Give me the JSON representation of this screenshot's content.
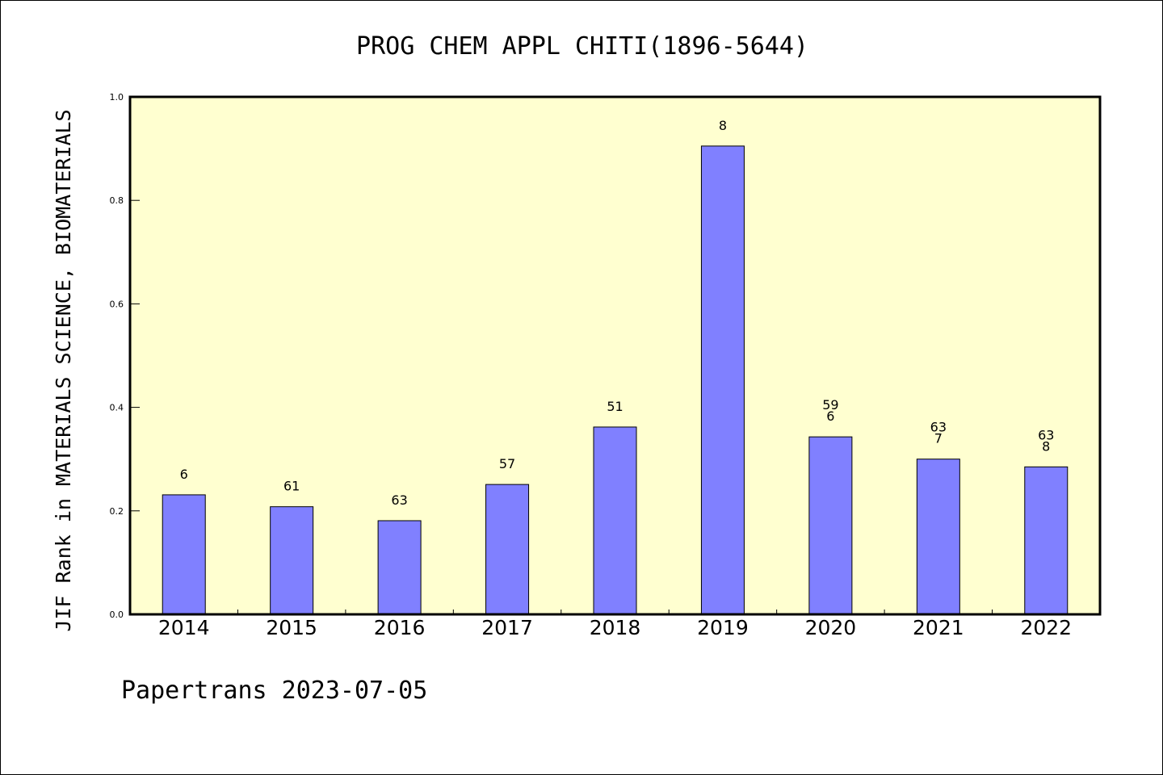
{
  "chart_data": {
    "type": "bar",
    "title": "PROG CHEM APPL CHITI(1896-5644)",
    "ylabel": "JIF Rank in MATERIALS SCIENCE, BIOMATERIALS",
    "xlabel": "",
    "categories": [
      "2014",
      "2015",
      "2016",
      "2017",
      "2018",
      "2019",
      "2020",
      "2021",
      "2022"
    ],
    "values": [
      0.231,
      0.208,
      0.181,
      0.251,
      0.362,
      0.905,
      0.343,
      0.3,
      0.285
    ],
    "bar_labels": [
      [
        "6"
      ],
      [
        "61"
      ],
      [
        "63"
      ],
      [
        "57"
      ],
      [
        "51"
      ],
      [
        "8"
      ],
      [
        "59",
        "6"
      ],
      [
        "63",
        "7"
      ],
      [
        "63",
        "8"
      ]
    ],
    "ylim": [
      0,
      1.0
    ],
    "yticks": [
      "0.0",
      "0.2",
      "0.4",
      "0.6",
      "0.8",
      "1.0"
    ],
    "grid": false,
    "legend": "none"
  },
  "footer": {
    "credit": "Papertrans 2023-07-05"
  },
  "colors": {
    "plot_background": "#ffffd0",
    "bar_fill": "#8080ff",
    "bar_stroke": "#000000",
    "axis": "#000000"
  }
}
